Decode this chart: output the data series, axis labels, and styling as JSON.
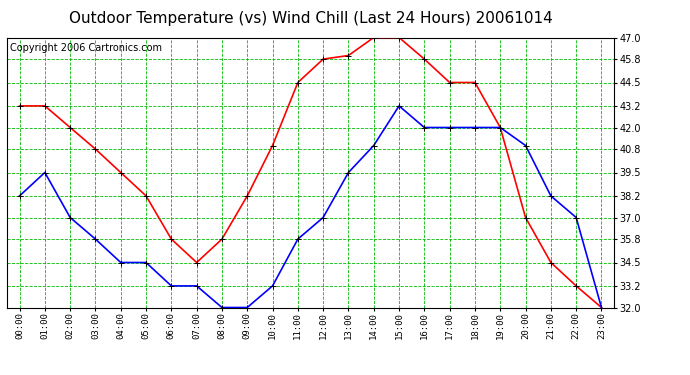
{
  "title": "Outdoor Temperature (vs) Wind Chill (Last 24 Hours) 20061014",
  "copyright": "Copyright 2006 Cartronics.com",
  "hours": [
    "00:00",
    "01:00",
    "02:00",
    "03:00",
    "04:00",
    "05:00",
    "06:00",
    "07:00",
    "08:00",
    "09:00",
    "10:00",
    "11:00",
    "12:00",
    "13:00",
    "14:00",
    "15:00",
    "16:00",
    "17:00",
    "18:00",
    "19:00",
    "20:00",
    "21:00",
    "22:00",
    "23:00"
  ],
  "temp": [
    43.2,
    43.2,
    42.0,
    40.8,
    39.5,
    38.2,
    35.8,
    34.5,
    35.8,
    38.2,
    41.0,
    44.5,
    45.8,
    46.0,
    47.0,
    47.0,
    45.8,
    44.5,
    44.5,
    42.0,
    37.0,
    34.5,
    33.2,
    32.0
  ],
  "wind_chill": [
    38.2,
    39.5,
    37.0,
    35.8,
    34.5,
    34.5,
    33.2,
    33.2,
    32.0,
    32.0,
    33.2,
    35.8,
    37.0,
    39.5,
    41.0,
    43.2,
    42.0,
    42.0,
    42.0,
    42.0,
    41.0,
    38.2,
    37.0,
    32.0
  ],
  "ylim": [
    32.0,
    47.0
  ],
  "yticks": [
    32.0,
    33.2,
    34.5,
    35.8,
    37.0,
    38.2,
    39.5,
    40.8,
    42.0,
    43.2,
    44.5,
    45.8,
    47.0
  ],
  "temp_color": "#ff0000",
  "wind_chill_color": "#0000ff",
  "bg_color": "#ffffff",
  "plot_bg_color": "#ffffff",
  "grid_color": "#00bb00",
  "border_color": "#000000",
  "title_color": "#000000",
  "title_fontsize": 11,
  "copyright_fontsize": 7
}
